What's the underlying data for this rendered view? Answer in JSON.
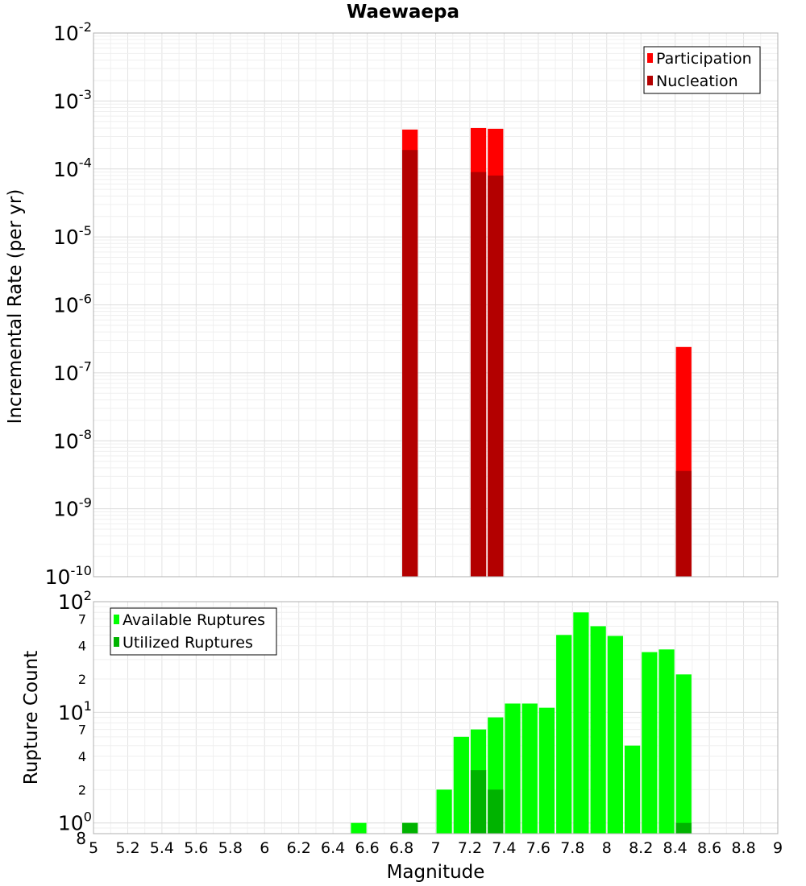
{
  "title": "Waewaepa",
  "chart_data": [
    {
      "type": "bar",
      "ylabel": "Incremental Rate (per yr)",
      "yscale": "log",
      "ylim": [
        1e-10,
        0.01
      ],
      "xlim": [
        5,
        9
      ],
      "bar_width": 0.1,
      "legend": {
        "position": "top-right",
        "entries": [
          "Participation",
          "Nucleation"
        ]
      },
      "y_ticks": [
        {
          "base": "10",
          "exp": "-10",
          "value": 1e-10
        },
        {
          "base": "10",
          "exp": "-9",
          "value": 1e-09
        },
        {
          "base": "10",
          "exp": "-8",
          "value": 1e-08
        },
        {
          "base": "10",
          "exp": "-7",
          "value": 1e-07
        },
        {
          "base": "10",
          "exp": "-6",
          "value": 1e-06
        },
        {
          "base": "10",
          "exp": "-5",
          "value": 1e-05
        },
        {
          "base": "10",
          "exp": "-4",
          "value": 0.0001
        },
        {
          "base": "10",
          "exp": "-3",
          "value": 0.001
        },
        {
          "base": "10",
          "exp": "-2",
          "value": 0.01
        }
      ],
      "series": [
        {
          "name": "Participation",
          "color": "#ff0000",
          "x": [
            6.85,
            7.25,
            7.35,
            8.45
          ],
          "values": [
            0.00038,
            0.0004,
            0.00039,
            2.4e-07
          ]
        },
        {
          "name": "Nucleation",
          "color": "#b30000",
          "x": [
            6.85,
            7.25,
            7.35,
            8.45
          ],
          "values": [
            0.00019,
            9e-05,
            8e-05,
            3.6e-09
          ]
        }
      ]
    },
    {
      "type": "bar",
      "xlabel": "Magnitude",
      "ylabel": "Rupture Count",
      "yscale": "log",
      "ylim": [
        0.8,
        100
      ],
      "xlim": [
        5,
        9
      ],
      "bar_width": 0.1,
      "legend": {
        "position": "top-left",
        "entries": [
          "Available Ruptures",
          "Utilized Ruptures"
        ]
      },
      "x_ticks": [
        "5",
        "5.2",
        "5.4",
        "5.6",
        "5.8",
        "6",
        "6.2",
        "6.4",
        "6.6",
        "6.8",
        "7",
        "7.2",
        "7.4",
        "7.6",
        "7.8",
        "8",
        "8.2",
        "8.4",
        "8.6",
        "8.8",
        "9"
      ],
      "y_major_ticks": [
        {
          "base": "10",
          "exp": "0",
          "value": 1
        },
        {
          "base": "10",
          "exp": "1",
          "value": 10
        },
        {
          "base": "10",
          "exp": "2",
          "value": 100
        }
      ],
      "y_minor_ticks": [
        {
          "label": "8",
          "value": 0.8
        },
        {
          "label": "2",
          "value": 2
        },
        {
          "label": "4",
          "value": 4
        },
        {
          "label": "7",
          "value": 7
        },
        {
          "label": "2",
          "value": 20
        },
        {
          "label": "4",
          "value": 40
        },
        {
          "label": "7",
          "value": 70
        }
      ],
      "series": [
        {
          "name": "Available Ruptures",
          "color": "#00ff00",
          "x": [
            6.55,
            6.85,
            7.05,
            7.15,
            7.25,
            7.35,
            7.45,
            7.55,
            7.65,
            7.75,
            7.85,
            7.95,
            8.05,
            8.15,
            8.25,
            8.35,
            8.45
          ],
          "values": [
            1,
            1,
            2,
            6,
            7,
            9,
            12,
            12,
            11,
            50,
            80,
            60,
            49,
            5,
            35,
            37,
            22
          ]
        },
        {
          "name": "Utilized Ruptures",
          "color": "#00b300",
          "x": [
            6.85,
            7.25,
            7.35,
            8.45
          ],
          "values": [
            1,
            3,
            2,
            1
          ]
        }
      ]
    }
  ]
}
